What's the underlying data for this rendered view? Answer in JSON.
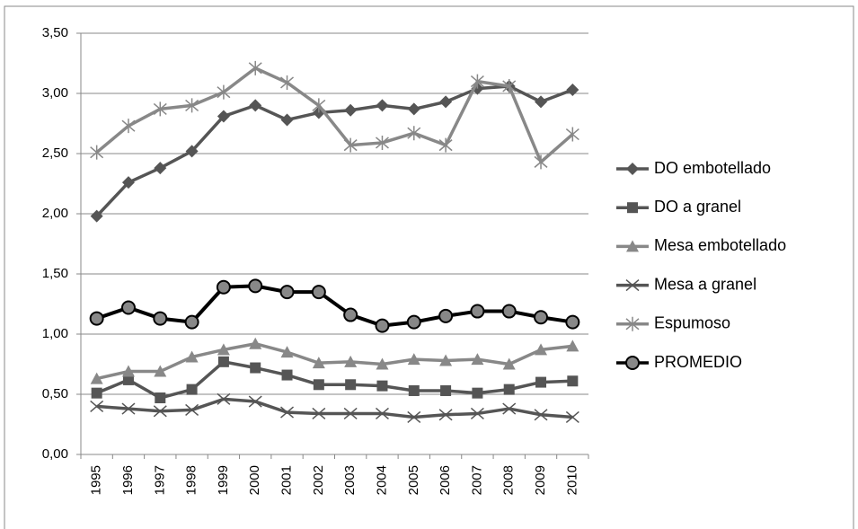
{
  "chart_data": {
    "type": "line",
    "categories": [
      "1995",
      "1996",
      "1997",
      "1998",
      "1999",
      "2000",
      "2001",
      "2002",
      "2003",
      "2004",
      "2005",
      "2006",
      "2007",
      "2008",
      "2009",
      "2010"
    ],
    "series": [
      {
        "name": "DO embotellado",
        "color": "#555555",
        "marker": "diamond",
        "values": [
          1.98,
          2.26,
          2.38,
          2.52,
          2.81,
          2.9,
          2.78,
          2.84,
          2.86,
          2.9,
          2.87,
          2.93,
          3.04,
          3.06,
          2.93,
          3.03
        ]
      },
      {
        "name": "DO a granel",
        "color": "#555555",
        "marker": "square",
        "values": [
          0.51,
          0.62,
          0.47,
          0.54,
          0.77,
          0.72,
          0.66,
          0.58,
          0.58,
          0.57,
          0.53,
          0.53,
          0.51,
          0.54,
          0.6,
          0.61
        ]
      },
      {
        "name": "Mesa embotellado",
        "color": "#888888",
        "marker": "triangle",
        "values": [
          0.63,
          0.69,
          0.69,
          0.81,
          0.87,
          0.92,
          0.85,
          0.76,
          0.77,
          0.75,
          0.79,
          0.78,
          0.79,
          0.75,
          0.87,
          0.9
        ]
      },
      {
        "name": "Mesa a granel",
        "color": "#555555",
        "marker": "x",
        "values": [
          0.4,
          0.38,
          0.36,
          0.37,
          0.46,
          0.44,
          0.35,
          0.34,
          0.34,
          0.34,
          0.31,
          0.33,
          0.34,
          0.38,
          0.33,
          0.31
        ]
      },
      {
        "name": "Espumoso",
        "color": "#888888",
        "marker": "asterisk",
        "values": [
          2.51,
          2.73,
          2.87,
          2.9,
          3.01,
          3.21,
          3.09,
          2.9,
          2.57,
          2.59,
          2.67,
          2.57,
          3.1,
          3.06,
          2.43,
          2.66
        ]
      },
      {
        "name": "PROMEDIO",
        "color": "#000000",
        "marker": "circle",
        "values": [
          1.13,
          1.22,
          1.13,
          1.1,
          1.39,
          1.4,
          1.35,
          1.35,
          1.16,
          1.07,
          1.1,
          1.15,
          1.19,
          1.19,
          1.14,
          1.1
        ]
      }
    ],
    "ylim": [
      0,
      3.5
    ],
    "yticks": [
      {
        "value": 0,
        "label": "0,00"
      },
      {
        "value": 0.5,
        "label": "0,50"
      },
      {
        "value": 1,
        "label": "1,00"
      },
      {
        "value": 1.5,
        "label": "1,50"
      },
      {
        "value": 2,
        "label": "2,00"
      },
      {
        "value": 2.5,
        "label": "2,50"
      },
      {
        "value": 3,
        "label": "3,00"
      },
      {
        "value": 3.5,
        "label": "3,50"
      }
    ],
    "grid": true,
    "legend": "right"
  }
}
